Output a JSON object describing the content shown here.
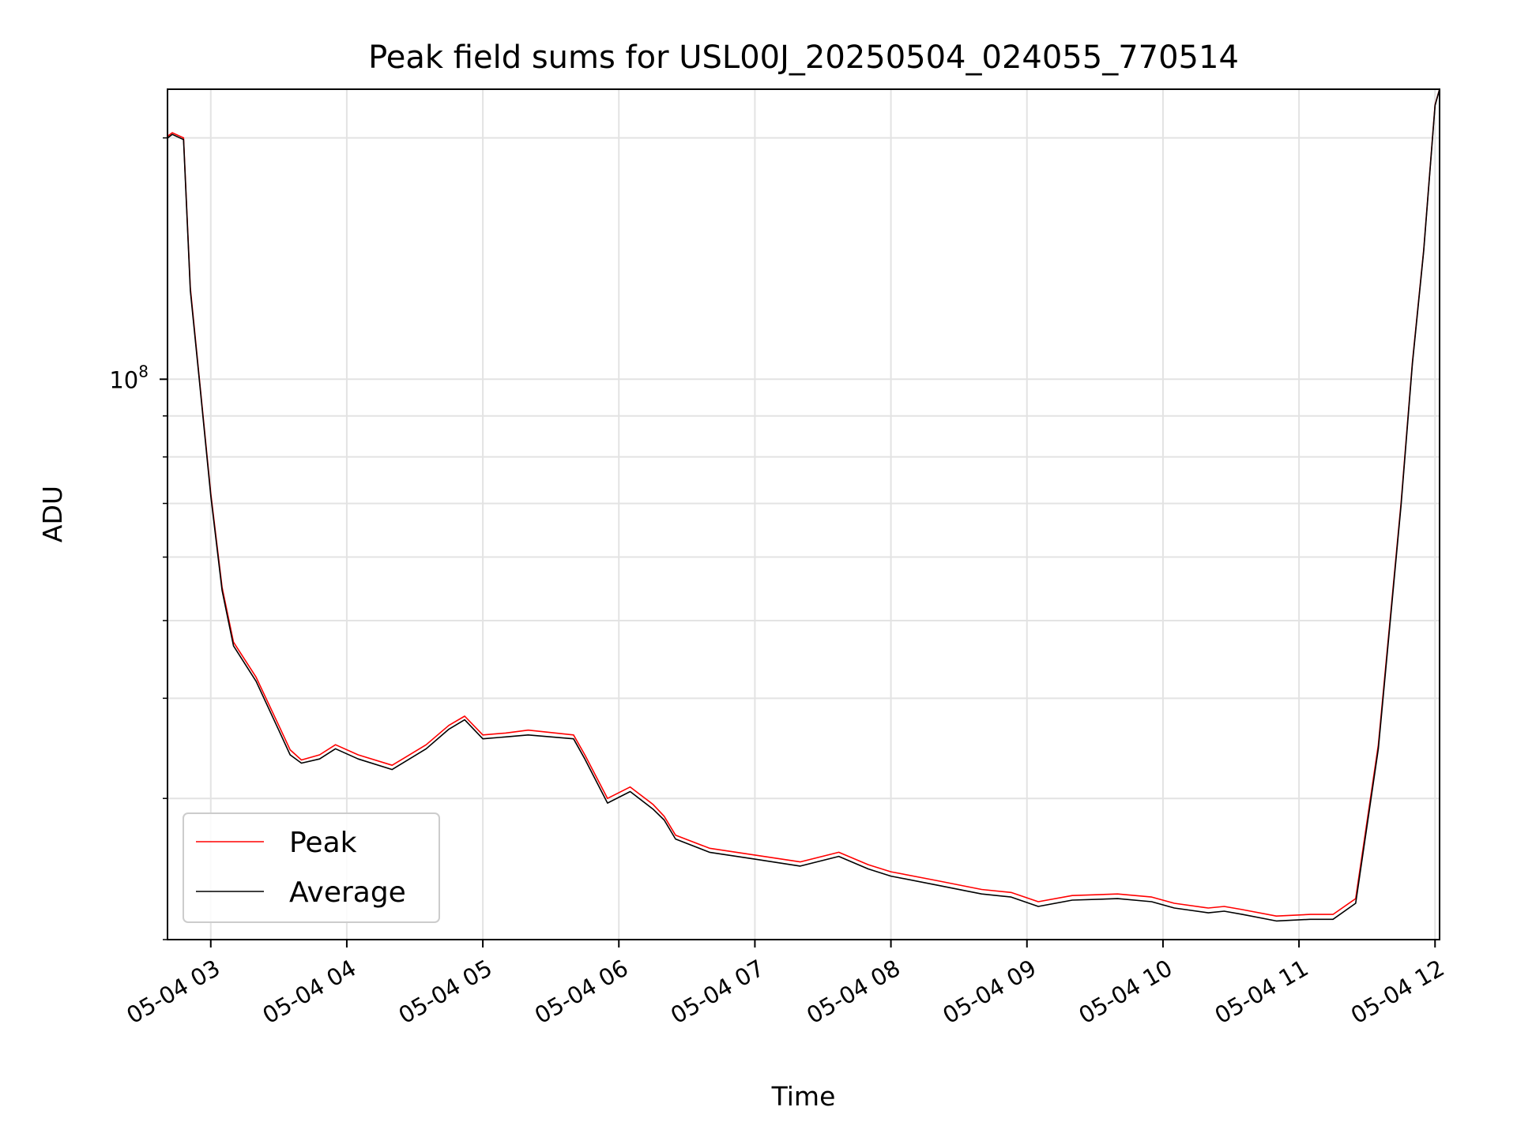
{
  "chart_data": {
    "type": "line",
    "title": "Peak field sums for USL00J_20250504_024055_770514",
    "xlabel": "Time",
    "ylabel": "ADU",
    "x_scale": "time",
    "y_scale": "log",
    "xlim": [
      "05-04 02:40:55",
      "05-04 12:02:00"
    ],
    "ylim": [
      20000000,
      230000000
    ],
    "x_ticks": [
      {
        "value": "05-04 03:00",
        "label": "05-04 03"
      },
      {
        "value": "05-04 04:00",
        "label": "05-04 04"
      },
      {
        "value": "05-04 05:00",
        "label": "05-04 05"
      },
      {
        "value": "05-04 06:00",
        "label": "05-04 06"
      },
      {
        "value": "05-04 07:00",
        "label": "05-04 07"
      },
      {
        "value": "05-04 08:00",
        "label": "05-04 08"
      },
      {
        "value": "05-04 09:00",
        "label": "05-04 09"
      },
      {
        "value": "05-04 10:00",
        "label": "05-04 10"
      },
      {
        "value": "05-04 11:00",
        "label": "05-04 11"
      },
      {
        "value": "05-04 12:00",
        "label": "05-04 12"
      }
    ],
    "y_ticks": [
      {
        "value": 100000000,
        "base": "10",
        "exp": "8"
      }
    ],
    "grid": true,
    "legend": {
      "position": "lower-left"
    },
    "series": [
      {
        "name": "Peak",
        "color": "#ff0000",
        "x": [
          "05-04 02:40",
          "05-04 02:43",
          "05-04 02:48",
          "05-04 02:51",
          "05-04 02:55",
          "05-04 03:00",
          "05-04 03:05",
          "05-04 03:10",
          "05-04 03:20",
          "05-04 03:30",
          "05-04 03:35",
          "05-04 03:40",
          "05-04 03:48",
          "05-04 03:55",
          "05-04 04:05",
          "05-04 04:20",
          "05-04 04:35",
          "05-04 04:45",
          "05-04 04:52",
          "05-04 05:00",
          "05-04 05:10",
          "05-04 05:20",
          "05-04 05:40",
          "05-04 05:45",
          "05-04 05:55",
          "05-04 06:05",
          "05-04 06:15",
          "05-04 06:20",
          "05-04 06:25",
          "05-04 06:40",
          "05-04 07:00",
          "05-04 07:20",
          "05-04 07:37",
          "05-04 07:50",
          "05-04 08:00",
          "05-04 08:20",
          "05-04 08:40",
          "05-04 08:53",
          "05-04 09:05",
          "05-04 09:20",
          "05-04 09:40",
          "05-04 09:55",
          "05-04 10:05",
          "05-04 10:20",
          "05-04 10:27",
          "05-04 10:35",
          "05-04 10:50",
          "05-04 11:05",
          "05-04 11:15",
          "05-04 11:25",
          "05-04 11:35",
          "05-04 11:45",
          "05-04 11:50",
          "05-04 11:55",
          "05-04 12:00",
          "05-04 12:02"
        ],
        "values": [
          200000000,
          203000000,
          200000000,
          130000000,
          100000000,
          72000000,
          55000000,
          47000000,
          42500000,
          37000000,
          34500000,
          33500000,
          34000000,
          35000000,
          34000000,
          33000000,
          35000000,
          37000000,
          38000000,
          36000000,
          36200000,
          36500000,
          36000000,
          34000000,
          30000000,
          31000000,
          29500000,
          28500000,
          27000000,
          26000000,
          25500000,
          25000000,
          25700000,
          24800000,
          24300000,
          23700000,
          23100000,
          22900000,
          22300000,
          22700000,
          22800000,
          22600000,
          22200000,
          21900000,
          22000000,
          21800000,
          21400000,
          21500000,
          21500000,
          22500000,
          35000000,
          70000000,
          105000000,
          145000000,
          220000000,
          230000000
        ]
      },
      {
        "name": "Average",
        "color": "#000000",
        "x": [
          "05-04 02:40",
          "05-04 02:43",
          "05-04 02:48",
          "05-04 02:51",
          "05-04 02:55",
          "05-04 03:00",
          "05-04 03:05",
          "05-04 03:10",
          "05-04 03:20",
          "05-04 03:30",
          "05-04 03:35",
          "05-04 03:40",
          "05-04 03:48",
          "05-04 03:55",
          "05-04 04:05",
          "05-04 04:20",
          "05-04 04:35",
          "05-04 04:45",
          "05-04 04:52",
          "05-04 05:00",
          "05-04 05:10",
          "05-04 05:20",
          "05-04 05:40",
          "05-04 05:45",
          "05-04 05:55",
          "05-04 06:05",
          "05-04 06:15",
          "05-04 06:20",
          "05-04 06:25",
          "05-04 06:40",
          "05-04 07:00",
          "05-04 07:20",
          "05-04 07:37",
          "05-04 07:50",
          "05-04 08:00",
          "05-04 08:20",
          "05-04 08:40",
          "05-04 08:53",
          "05-04 09:05",
          "05-04 09:20",
          "05-04 09:40",
          "05-04 09:55",
          "05-04 10:05",
          "05-04 10:20",
          "05-04 10:27",
          "05-04 10:35",
          "05-04 10:50",
          "05-04 11:05",
          "05-04 11:15",
          "05-04 11:25",
          "05-04 11:35",
          "05-04 11:45",
          "05-04 11:50",
          "05-04 11:55",
          "05-04 12:00",
          "05-04 12:02"
        ],
        "values": [
          199000000,
          202000000,
          199000000,
          129000000,
          99500000,
          71500000,
          54500000,
          46500000,
          42000000,
          36500000,
          34000000,
          33200000,
          33600000,
          34600000,
          33600000,
          32600000,
          34600000,
          36600000,
          37600000,
          35600000,
          35800000,
          36000000,
          35600000,
          33600000,
          29600000,
          30600000,
          29100000,
          28200000,
          26700000,
          25700000,
          25200000,
          24700000,
          25400000,
          24500000,
          24000000,
          23400000,
          22800000,
          22600000,
          22000000,
          22400000,
          22500000,
          22300000,
          21900000,
          21600000,
          21700000,
          21500000,
          21100000,
          21200000,
          21200000,
          22200000,
          34600000,
          69500000,
          104500000,
          144500000,
          219500000,
          230000000
        ]
      }
    ]
  }
}
